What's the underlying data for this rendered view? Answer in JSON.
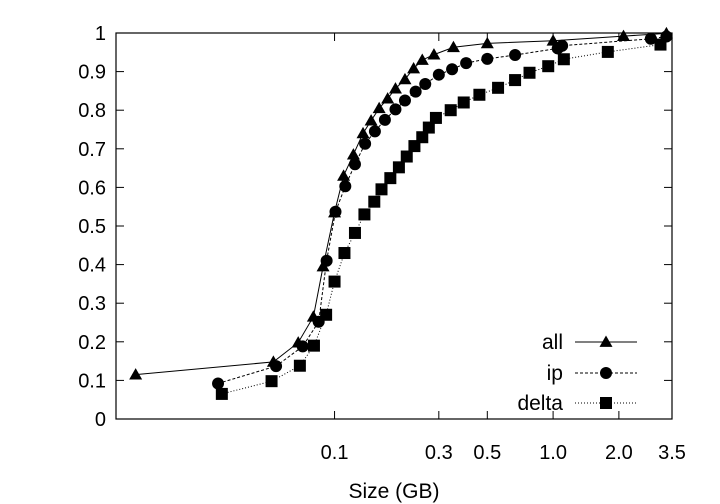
{
  "chart_data": {
    "type": "line",
    "xlabel": "Size (GB)",
    "ylabel": "",
    "xscale": "log",
    "xlim": [
      0.01,
      3.5
    ],
    "ylim": [
      0,
      1
    ],
    "xticks": [
      0.1,
      0.3,
      0.5,
      1.0,
      2.0,
      3.5
    ],
    "xtick_labels": [
      "0.1",
      "0.3",
      "0.5",
      "1.0",
      "2.0",
      "3.5"
    ],
    "yticks": [
      0,
      0.1,
      0.2,
      0.3,
      0.4,
      0.5,
      0.6,
      0.7,
      0.8,
      0.9,
      1
    ],
    "ytick_labels": [
      "0",
      "0.1",
      "0.2",
      "0.3",
      "0.4",
      "0.5",
      "0.6",
      "0.7",
      "0.8",
      "0.9",
      "1"
    ],
    "grid": false,
    "legend_position": "bottom-right",
    "series": [
      {
        "name": "all",
        "marker": "triangle",
        "line": "solid",
        "x": [
          0.0123,
          0.0525,
          0.0682,
          0.08,
          0.0886,
          0.1,
          0.11,
          0.122,
          0.135,
          0.147,
          0.16,
          0.175,
          0.19,
          0.21,
          0.23,
          0.252,
          0.285,
          0.35,
          0.5,
          1.0,
          2.1,
          3.3
        ],
        "y": [
          0.115,
          0.148,
          0.198,
          0.265,
          0.395,
          0.535,
          0.63,
          0.685,
          0.74,
          0.773,
          0.805,
          0.83,
          0.856,
          0.88,
          0.908,
          0.93,
          0.944,
          0.963,
          0.973,
          0.98,
          0.992,
          0.999
        ]
      },
      {
        "name": "ip",
        "marker": "circle",
        "line": "dashed",
        "x": [
          0.0293,
          0.054,
          0.0715,
          0.0846,
          0.092,
          0.101,
          0.112,
          0.124,
          0.138,
          0.153,
          0.17,
          0.19,
          0.21,
          0.235,
          0.26,
          0.3,
          0.345,
          0.4,
          0.5,
          0.67,
          1.05,
          1.1,
          2.8,
          3.3
        ],
        "y": [
          0.092,
          0.137,
          0.188,
          0.252,
          0.41,
          0.537,
          0.603,
          0.66,
          0.713,
          0.745,
          0.775,
          0.802,
          0.825,
          0.848,
          0.868,
          0.892,
          0.906,
          0.922,
          0.933,
          0.943,
          0.96,
          0.967,
          0.985,
          0.991
        ]
      },
      {
        "name": "delta",
        "marker": "square",
        "line": "dotted",
        "x": [
          0.0305,
          0.0515,
          0.0694,
          0.0805,
          0.0915,
          0.1,
          0.111,
          0.124,
          0.137,
          0.152,
          0.164,
          0.18,
          0.197,
          0.214,
          0.232,
          0.252,
          0.27,
          0.291,
          0.34,
          0.39,
          0.46,
          0.56,
          0.67,
          0.78,
          0.95,
          1.12,
          1.78,
          3.1
        ],
        "y": [
          0.065,
          0.098,
          0.138,
          0.19,
          0.27,
          0.356,
          0.43,
          0.482,
          0.53,
          0.563,
          0.595,
          0.624,
          0.652,
          0.68,
          0.707,
          0.73,
          0.755,
          0.78,
          0.8,
          0.82,
          0.84,
          0.858,
          0.878,
          0.897,
          0.914,
          0.932,
          0.951,
          0.97
        ]
      }
    ]
  }
}
